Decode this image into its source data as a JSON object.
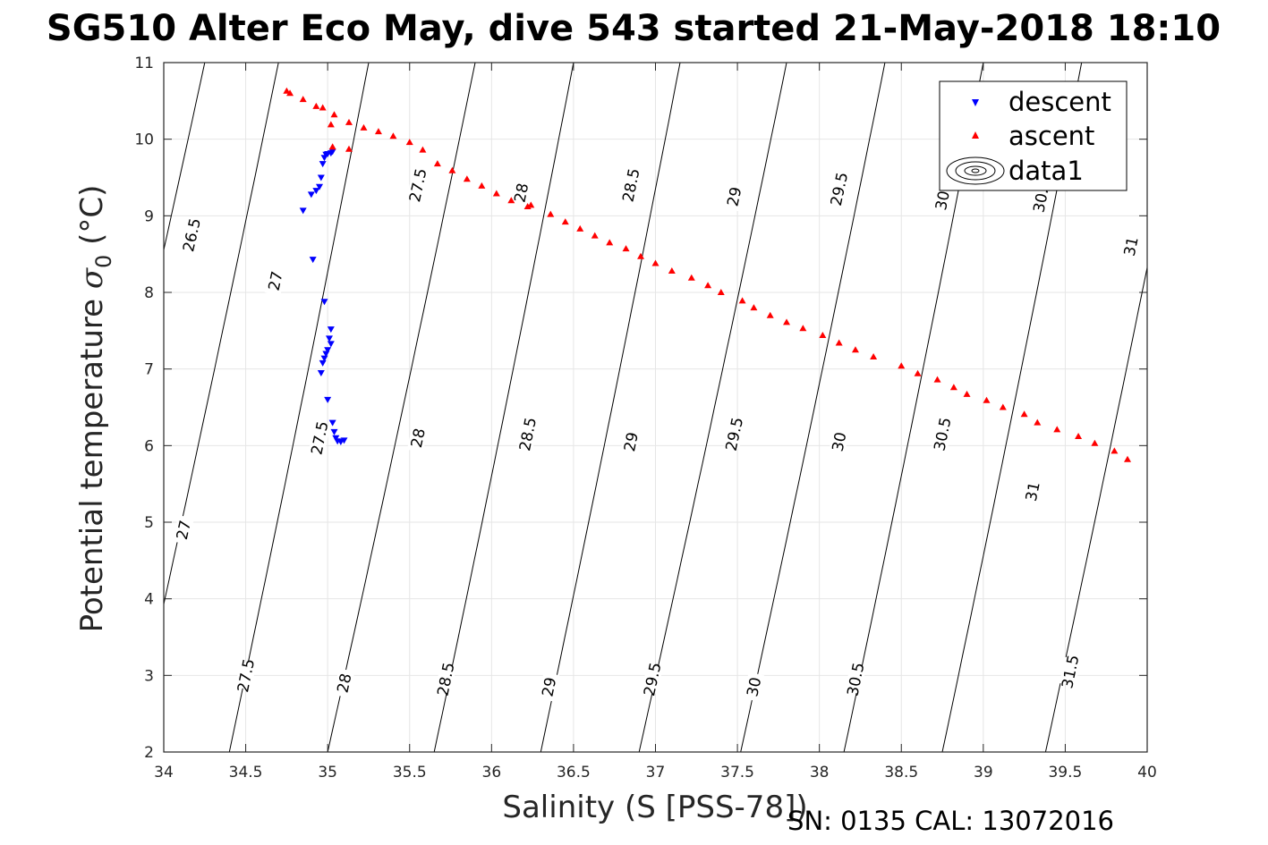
{
  "title": "SG510 Alter Eco May, dive 543 started 21-May-2018 18:10",
  "footer": "SN: 0135  CAL: 13072016",
  "chart_data": {
    "type": "scatter",
    "xlabel": "Salinity (S [PSS-78])",
    "ylabel": "Potential temperature σ₀ (°C)",
    "ylabel_parts": {
      "main": "Potential temperature ",
      "sigma": "σ",
      "sub": "0",
      "unit": " (°C)"
    },
    "xlim": [
      34,
      40
    ],
    "ylim": [
      2,
      11
    ],
    "xticks": [
      "34",
      "34.5",
      "35",
      "35.5",
      "36",
      "36.5",
      "37",
      "37.5",
      "38",
      "38.5",
      "39",
      "39.5",
      "40"
    ],
    "yticks": [
      "2",
      "3",
      "4",
      "5",
      "6",
      "7",
      "8",
      "9",
      "10",
      "11"
    ],
    "grid": true,
    "legend": {
      "placement": "top-right",
      "entries": [
        "descent",
        "ascent",
        "data1"
      ]
    },
    "colors": {
      "descent": "#0000ff",
      "ascent": "#ff0000",
      "contour": "#000000"
    },
    "series": [
      {
        "name": "descent",
        "marker": "triangle-down",
        "x": [
          34.85,
          34.9,
          34.93,
          34.95,
          34.96,
          34.97,
          34.98,
          34.99,
          35.0,
          35.02,
          35.03,
          34.91,
          34.98,
          35.02,
          35.01,
          35.02,
          35.0,
          34.99,
          34.98,
          34.97,
          34.96,
          35.0,
          35.03,
          35.04,
          35.05,
          35.06,
          35.08,
          35.1
        ],
        "y": [
          9.07,
          9.28,
          9.33,
          9.38,
          9.5,
          9.68,
          9.76,
          9.8,
          9.81,
          9.82,
          9.84,
          8.43,
          7.88,
          7.52,
          7.4,
          7.33,
          7.25,
          7.2,
          7.14,
          7.08,
          6.95,
          6.6,
          6.3,
          6.18,
          6.1,
          6.06,
          6.05,
          6.07
        ]
      },
      {
        "name": "ascent",
        "marker": "triangle-up",
        "x": [
          34.75,
          34.77,
          34.85,
          34.93,
          34.97,
          35.04,
          35.02,
          35.03,
          35.13,
          35.13,
          35.22,
          35.31,
          35.4,
          35.5,
          35.58,
          35.67,
          35.76,
          35.85,
          35.94,
          36.03,
          36.12,
          36.22,
          36.24,
          36.36,
          36.45,
          36.54,
          36.63,
          36.72,
          36.82,
          36.91,
          37.0,
          37.1,
          37.22,
          37.32,
          37.4,
          37.53,
          37.6,
          37.7,
          37.8,
          37.9,
          38.02,
          38.12,
          38.22,
          38.33,
          38.5,
          38.6,
          38.72,
          38.82,
          38.9,
          39.02,
          39.12,
          39.25,
          39.33,
          39.45,
          39.58,
          39.68,
          39.8,
          39.88
        ],
        "y": [
          10.63,
          10.6,
          10.52,
          10.43,
          10.41,
          10.32,
          10.19,
          9.9,
          9.87,
          10.22,
          10.15,
          10.1,
          10.04,
          9.96,
          9.86,
          9.68,
          9.59,
          9.48,
          9.39,
          9.29,
          9.2,
          9.12,
          9.14,
          9.02,
          8.92,
          8.83,
          8.74,
          8.65,
          8.57,
          8.47,
          8.38,
          8.28,
          8.19,
          8.09,
          8.0,
          7.89,
          7.8,
          7.7,
          7.61,
          7.53,
          7.44,
          7.34,
          7.25,
          7.16,
          7.04,
          6.94,
          6.86,
          6.76,
          6.67,
          6.59,
          6.5,
          6.41,
          6.3,
          6.21,
          6.12,
          6.03,
          5.93,
          5.82
        ]
      }
    ],
    "contours": {
      "name": "data1",
      "lines": [
        {
          "x_at_2": 34.4,
          "x_at_11": 35.25,
          "labels": [
            {
              "text": "27.5",
              "x": 34.5,
              "y": 3.0
            },
            {
              "text": "27.5",
              "x": 34.95,
              "y": 6.1
            }
          ]
        },
        {
          "x_at_2": 35.0,
          "x_at_11": 35.9,
          "labels": [
            {
              "text": "28",
              "x": 35.1,
              "y": 2.9
            },
            {
              "text": "28",
              "x": 35.55,
              "y": 6.1
            },
            {
              "text": "27.5",
              "x": 35.55,
              "y": 9.4
            }
          ]
        },
        {
          "x_at_2": 35.65,
          "x_at_11": 36.5,
          "labels": [
            {
              "text": "28.5",
              "x": 35.72,
              "y": 2.95
            },
            {
              "text": "28.5",
              "x": 36.22,
              "y": 6.15
            },
            {
              "text": "28",
              "x": 36.18,
              "y": 9.3
            }
          ]
        },
        {
          "x_at_2": 36.3,
          "x_at_11": 37.15,
          "labels": [
            {
              "text": "29",
              "x": 36.35,
              "y": 2.85
            },
            {
              "text": "29",
              "x": 36.85,
              "y": 6.05
            },
            {
              "text": "28.5",
              "x": 36.85,
              "y": 9.4
            }
          ]
        },
        {
          "x_at_2": 36.9,
          "x_at_11": 37.8,
          "labels": [
            {
              "text": "29.5",
              "x": 36.98,
              "y": 2.95
            },
            {
              "text": "29.5",
              "x": 37.48,
              "y": 6.15
            },
            {
              "text": "29",
              "x": 37.48,
              "y": 9.25
            }
          ]
        },
        {
          "x_at_2": 37.52,
          "x_at_11": 38.4,
          "labels": [
            {
              "text": "30",
              "x": 37.6,
              "y": 2.85
            },
            {
              "text": "30",
              "x": 38.12,
              "y": 6.05
            },
            {
              "text": "29.5",
              "x": 38.12,
              "y": 9.35
            }
          ]
        },
        {
          "x_at_2": 38.15,
          "x_at_11": 39.0,
          "labels": [
            {
              "text": "30.5",
              "x": 38.22,
              "y": 2.95
            },
            {
              "text": "30.5",
              "x": 38.75,
              "y": 6.15
            },
            {
              "text": "30",
              "x": 38.75,
              "y": 9.2
            }
          ]
        },
        {
          "x_at_2": 38.75,
          "x_at_11": 39.6,
          "labels": [
            {
              "text": "31",
              "x": 39.3,
              "y": 5.4
            },
            {
              "text": "30.",
              "x": 39.35,
              "y": 9.2
            }
          ]
        },
        {
          "x_at_2": 39.38,
          "x_at_11": 40.25,
          "labels": [
            {
              "text": "31.5",
              "x": 39.53,
              "y": 3.05
            },
            {
              "text": "31",
              "x": 39.9,
              "y": 8.6
            }
          ]
        },
        {
          "x_at_2": 33.8,
          "x_at_11": 34.7,
          "labels": [
            {
              "text": "27",
              "x": 34.12,
              "y": 4.9
            },
            {
              "text": "27",
              "x": 34.68,
              "y": 8.15
            }
          ]
        },
        {
          "x_at_2": 33.3,
          "x_at_11": 34.25,
          "labels": [
            {
              "text": "26.5",
              "x": 34.17,
              "y": 8.75
            }
          ]
        }
      ]
    }
  }
}
